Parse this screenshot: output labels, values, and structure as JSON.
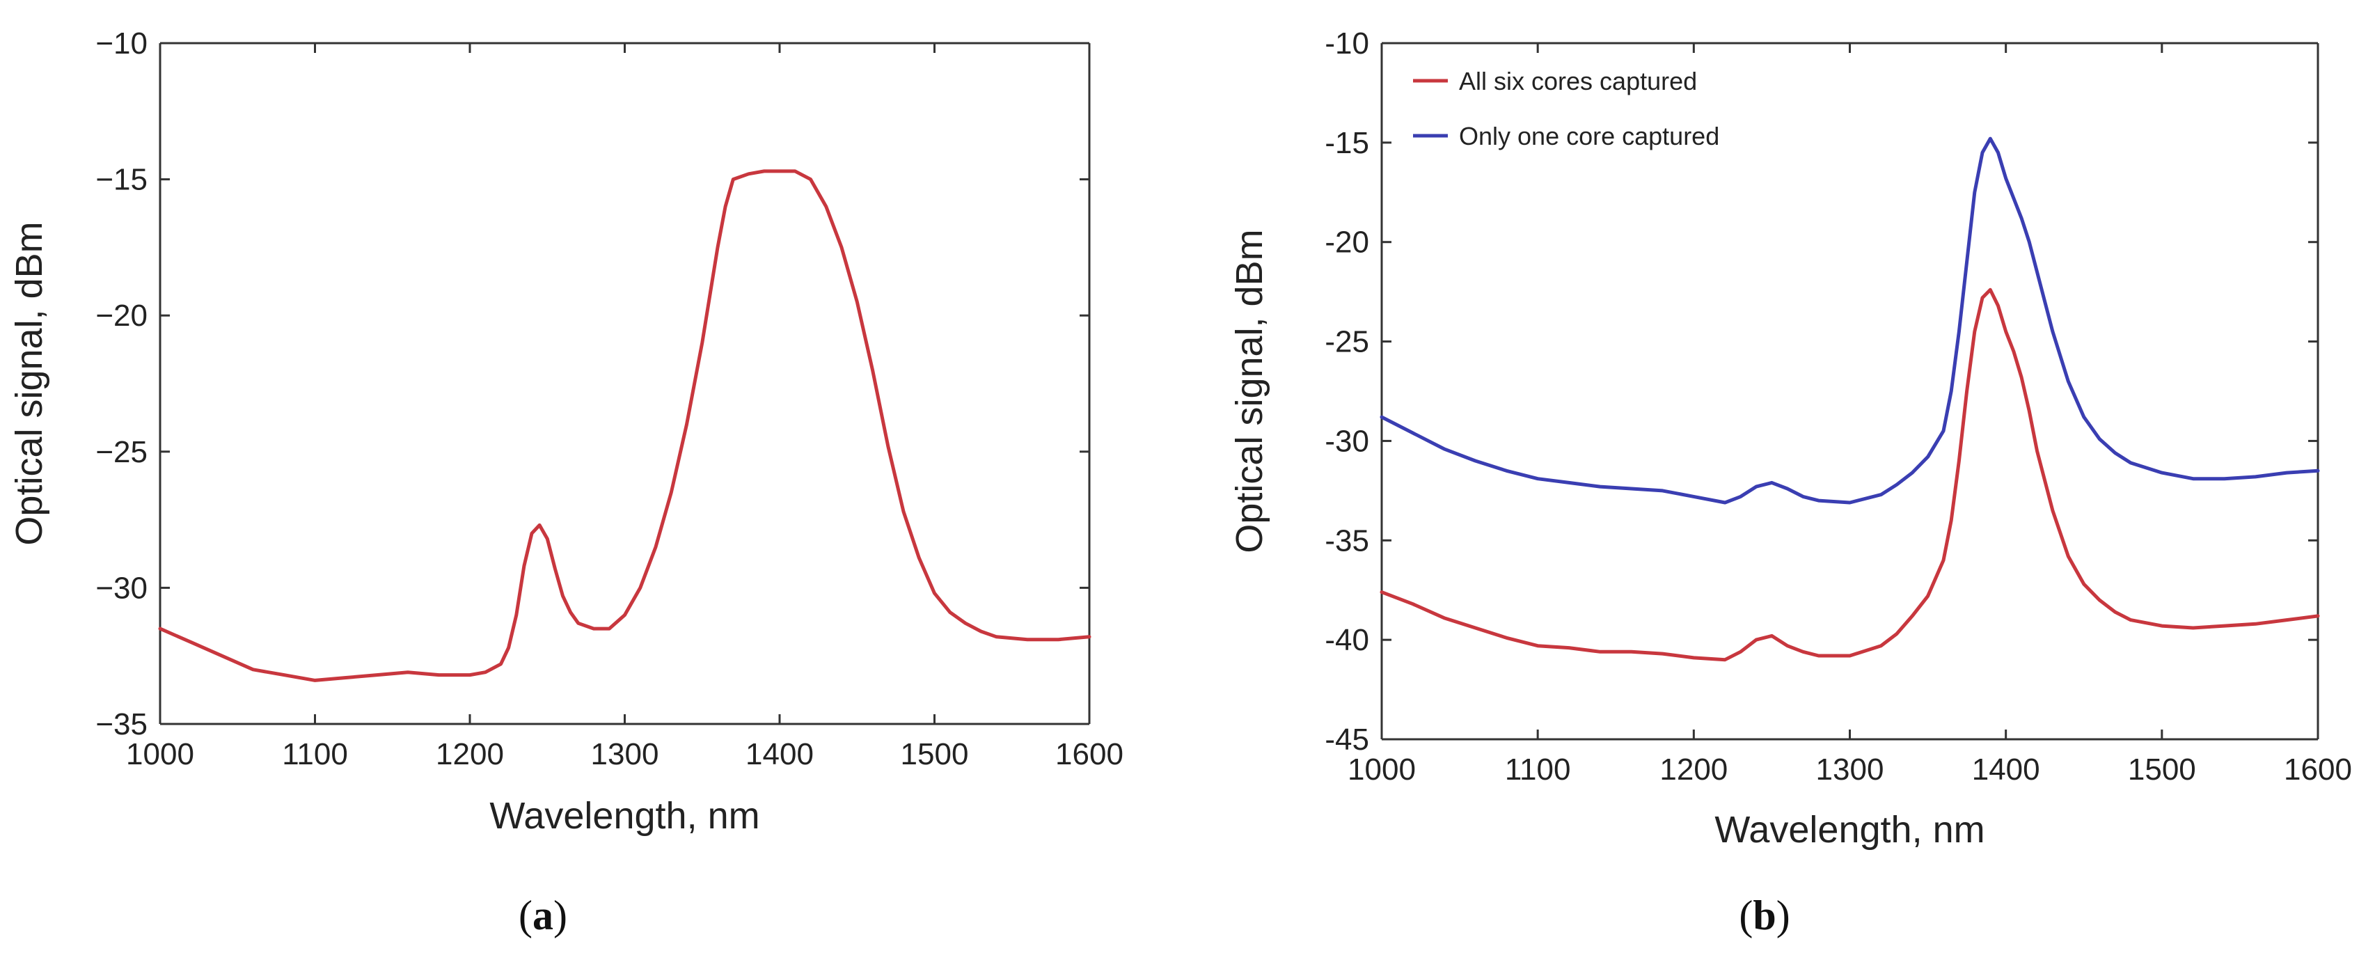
{
  "chart_data": [
    {
      "type": "line",
      "panel_label": "a",
      "xlabel": "Wavelength, nm",
      "ylabel": "Optical signal, dBm",
      "xlim": [
        1000,
        1600
      ],
      "ylim": [
        -35,
        -10
      ],
      "xticks": [
        1000,
        1100,
        1200,
        1300,
        1400,
        1500,
        1600
      ],
      "yticks": [
        -35,
        -30,
        -25,
        -20,
        -15,
        -10
      ],
      "xtick_labels": [
        "1000",
        "1100",
        "1200",
        "1300",
        "1400",
        "1500",
        "1600"
      ],
      "ytick_labels": [
        "−35",
        "−30",
        "−25",
        "−20",
        "−15",
        "−10"
      ],
      "series": [
        {
          "name": "Optical signal",
          "color": "#c8373e",
          "x": [
            1000,
            1020,
            1040,
            1060,
            1080,
            1100,
            1120,
            1140,
            1160,
            1180,
            1200,
            1210,
            1220,
            1225,
            1230,
            1235,
            1240,
            1245,
            1250,
            1255,
            1260,
            1265,
            1270,
            1280,
            1290,
            1300,
            1310,
            1320,
            1330,
            1340,
            1350,
            1360,
            1365,
            1370,
            1380,
            1390,
            1400,
            1410,
            1420,
            1430,
            1440,
            1450,
            1460,
            1470,
            1480,
            1490,
            1500,
            1510,
            1520,
            1530,
            1540,
            1560,
            1580,
            1600
          ],
          "y": [
            -31.5,
            -32.0,
            -32.5,
            -33.0,
            -33.2,
            -33.4,
            -33.3,
            -33.2,
            -33.1,
            -33.2,
            -33.2,
            -33.1,
            -32.8,
            -32.2,
            -31.0,
            -29.2,
            -28.0,
            -27.7,
            -28.2,
            -29.3,
            -30.3,
            -30.9,
            -31.3,
            -31.5,
            -31.5,
            -31.0,
            -30.0,
            -28.5,
            -26.5,
            -24.0,
            -21.0,
            -17.5,
            -16.0,
            -15.0,
            -14.8,
            -14.7,
            -14.7,
            -14.7,
            -15.0,
            -16.0,
            -17.5,
            -19.5,
            -22.0,
            -24.8,
            -27.2,
            -28.9,
            -30.2,
            -30.9,
            -31.3,
            -31.6,
            -31.8,
            -31.9,
            -31.9,
            -31.8
          ]
        }
      ]
    },
    {
      "type": "line",
      "panel_label": "b",
      "xlabel": "Wavelength, nm",
      "ylabel": "Optical signal, dBm",
      "xlim": [
        1000,
        1600
      ],
      "ylim": [
        -45,
        -10
      ],
      "xticks": [
        1000,
        1100,
        1200,
        1300,
        1400,
        1500,
        1600
      ],
      "yticks": [
        -45,
        -40,
        -35,
        -30,
        -25,
        -20,
        -15,
        -10
      ],
      "xtick_labels": [
        "1000",
        "1100",
        "1200",
        "1300",
        "1400",
        "1500",
        "1600"
      ],
      "ytick_labels": [
        "-45",
        "-40",
        "-35",
        "-30",
        "-25",
        "-20",
        "-15",
        "-10"
      ],
      "legend_position": "top-left",
      "series": [
        {
          "name": "All six cores captured",
          "color": "#c8373e",
          "x": [
            1000,
            1020,
            1040,
            1060,
            1080,
            1100,
            1120,
            1140,
            1160,
            1180,
            1200,
            1220,
            1230,
            1240,
            1250,
            1260,
            1270,
            1280,
            1300,
            1320,
            1330,
            1340,
            1350,
            1360,
            1365,
            1370,
            1375,
            1380,
            1385,
            1390,
            1395,
            1400,
            1405,
            1410,
            1415,
            1420,
            1430,
            1440,
            1450,
            1460,
            1470,
            1480,
            1500,
            1520,
            1540,
            1560,
            1580,
            1600
          ],
          "y": [
            -37.6,
            -38.2,
            -38.9,
            -39.4,
            -39.9,
            -40.3,
            -40.4,
            -40.6,
            -40.6,
            -40.7,
            -40.9,
            -41.0,
            -40.6,
            -40.0,
            -39.8,
            -40.3,
            -40.6,
            -40.8,
            -40.8,
            -40.3,
            -39.7,
            -38.8,
            -37.8,
            -36.0,
            -34.0,
            -31.0,
            -27.5,
            -24.5,
            -22.8,
            -22.4,
            -23.2,
            -24.5,
            -25.5,
            -26.8,
            -28.5,
            -30.5,
            -33.5,
            -35.8,
            -37.2,
            -38.0,
            -38.6,
            -39.0,
            -39.3,
            -39.4,
            -39.3,
            -39.2,
            -39.0,
            -38.8
          ]
        },
        {
          "name": "Only one core captured",
          "color": "#3a3eb2",
          "x": [
            1000,
            1020,
            1040,
            1060,
            1080,
            1100,
            1120,
            1140,
            1160,
            1180,
            1200,
            1220,
            1230,
            1240,
            1250,
            1260,
            1270,
            1280,
            1300,
            1320,
            1330,
            1340,
            1350,
            1360,
            1365,
            1370,
            1375,
            1380,
            1385,
            1390,
            1395,
            1400,
            1405,
            1410,
            1415,
            1420,
            1430,
            1440,
            1450,
            1460,
            1470,
            1480,
            1500,
            1520,
            1540,
            1560,
            1580,
            1600
          ],
          "y": [
            -28.8,
            -29.6,
            -30.4,
            -31.0,
            -31.5,
            -31.9,
            -32.1,
            -32.3,
            -32.4,
            -32.5,
            -32.8,
            -33.1,
            -32.8,
            -32.3,
            -32.1,
            -32.4,
            -32.8,
            -33.0,
            -33.1,
            -32.7,
            -32.2,
            -31.6,
            -30.8,
            -29.5,
            -27.5,
            -24.5,
            -21.0,
            -17.5,
            -15.5,
            -14.8,
            -15.5,
            -16.8,
            -17.8,
            -18.8,
            -20.0,
            -21.5,
            -24.5,
            -27.0,
            -28.8,
            -29.9,
            -30.6,
            -31.1,
            -31.6,
            -31.9,
            -31.9,
            -31.8,
            -31.6,
            -31.5
          ]
        }
      ]
    }
  ],
  "captions": [
    {
      "open": "(",
      "letter": "a",
      "close": ")"
    },
    {
      "open": "(",
      "letter": "b",
      "close": ")"
    }
  ]
}
